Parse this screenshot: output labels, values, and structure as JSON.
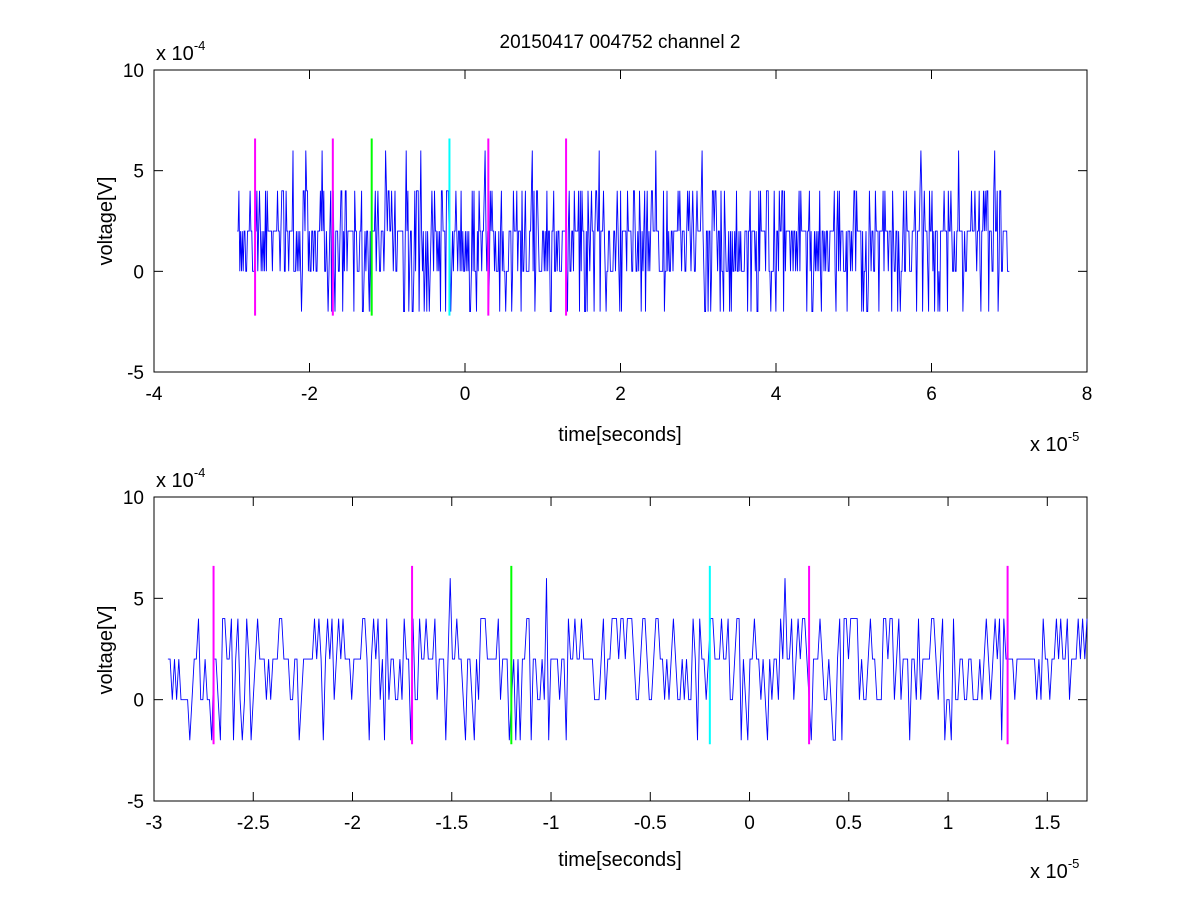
{
  "figure": {
    "title": "20150417 004752 channel 2"
  },
  "chart_data": [
    {
      "type": "line",
      "title": "20150417 004752 channel 2",
      "xlabel": "time[seconds]",
      "ylabel": "voltage[V]",
      "x_multiplier_label": "x 10",
      "x_multiplier_exponent": "-5",
      "y_multiplier_label": "x 10",
      "y_multiplier_exponent": "-4",
      "xlim": [
        -4,
        8
      ],
      "ylim": [
        -5,
        10
      ],
      "xticks": [
        -4,
        -2,
        0,
        2,
        4,
        6,
        8
      ],
      "xtick_labels": [
        "-4",
        "-2",
        "0",
        "2",
        "4",
        "6",
        "8"
      ],
      "yticks": [
        -5,
        0,
        5,
        10
      ],
      "ytick_labels": [
        "-5",
        "0",
        "5",
        "10"
      ],
      "grid": false,
      "series": [
        {
          "color": "#0000ff",
          "x_start": -2.93,
          "x_end": 7.0,
          "values_levels": [
            -2,
            0,
            2,
            4,
            6
          ],
          "baseline": 2
        }
      ],
      "vertical_markers": [
        {
          "x": -2.7,
          "ymin": -2.2,
          "ymax": 6.6,
          "color": "#ff00ff"
        },
        {
          "x": -1.7,
          "ymin": -2.2,
          "ymax": 6.6,
          "color": "#ff00ff"
        },
        {
          "x": -1.2,
          "ymin": -2.2,
          "ymax": 6.6,
          "color": "#00ff00"
        },
        {
          "x": -0.2,
          "ymin": -2.2,
          "ymax": 6.6,
          "color": "#00ffff"
        },
        {
          "x": 0.3,
          "ymin": -2.2,
          "ymax": 6.6,
          "color": "#ff00ff"
        },
        {
          "x": 1.3,
          "ymin": -2.2,
          "ymax": 6.6,
          "color": "#ff00ff"
        }
      ]
    },
    {
      "type": "line",
      "xlabel": "time[seconds]",
      "ylabel": "voltage[V]",
      "x_multiplier_label": "x 10",
      "x_multiplier_exponent": "-5",
      "y_multiplier_label": "x 10",
      "y_multiplier_exponent": "-4",
      "xlim": [
        -3.0,
        1.7
      ],
      "ylim": [
        -5,
        10
      ],
      "xticks": [
        -3,
        -2.5,
        -2,
        -1.5,
        -1,
        -0.5,
        0,
        0.5,
        1,
        1.5
      ],
      "xtick_labels": [
        "-3",
        "-2.5",
        "-2",
        "-1.5",
        "-1",
        "-0.5",
        "0",
        "0.5",
        "1",
        "1.5"
      ],
      "yticks": [
        -5,
        0,
        5,
        10
      ],
      "ytick_labels": [
        "-5",
        "0",
        "5",
        "10"
      ],
      "grid": false,
      "series": [
        {
          "color": "#0000ff",
          "x_start": -2.93,
          "x_end": 1.7,
          "values_levels": [
            -2,
            0,
            2,
            4,
            6
          ],
          "baseline": 2
        }
      ],
      "vertical_markers": [
        {
          "x": -2.7,
          "ymin": -2.2,
          "ymax": 6.6,
          "color": "#ff00ff"
        },
        {
          "x": -1.7,
          "ymin": -2.2,
          "ymax": 6.6,
          "color": "#ff00ff"
        },
        {
          "x": -1.2,
          "ymin": -2.2,
          "ymax": 6.6,
          "color": "#00ff00"
        },
        {
          "x": -0.2,
          "ymin": -2.2,
          "ymax": 6.6,
          "color": "#00ffff"
        },
        {
          "x": 0.3,
          "ymin": -2.2,
          "ymax": 6.6,
          "color": "#ff00ff"
        },
        {
          "x": 1.3,
          "ymin": -2.2,
          "ymax": 6.6,
          "color": "#ff00ff"
        }
      ]
    }
  ]
}
